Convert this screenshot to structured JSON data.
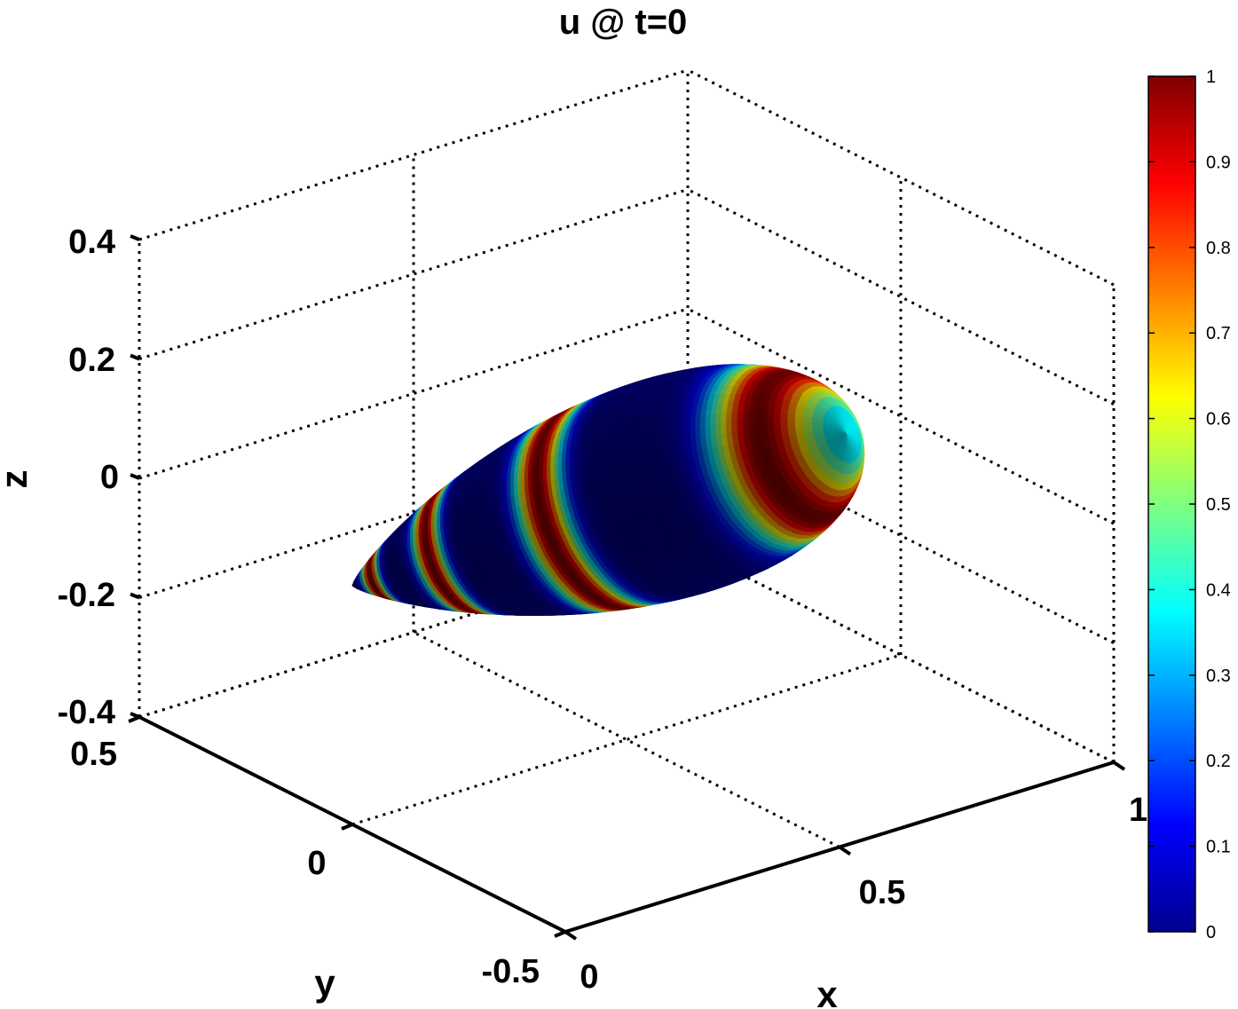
{
  "chart_data": {
    "type": "surface3d",
    "title": "u @ t=0",
    "xlabel": "x",
    "ylabel": "y",
    "zlabel": "z",
    "xlim": [
      0,
      1
    ],
    "ylim": [
      -0.5,
      0.5
    ],
    "zlim": [
      -0.4,
      0.4
    ],
    "xticks": [
      "0",
      "0.5",
      "1"
    ],
    "yticks": [
      "-0.5",
      "0",
      "0.5"
    ],
    "zticks": [
      "-0.4",
      "-0.2",
      "0",
      "0.2",
      "0.4"
    ],
    "grid": true,
    "colormap": "jet",
    "clim": [
      0,
      1
    ],
    "colorbar_ticks": [
      "0",
      "0.1",
      "0.2",
      "0.3",
      "0.4",
      "0.5",
      "0.6",
      "0.7",
      "0.8",
      "0.9",
      "1"
    ],
    "surface": {
      "shape": "teardrop body of revolution about the x axis",
      "x_range": [
        0,
        0.9
      ],
      "max_radius": 0.36,
      "color_bands_u1_at_x": [
        0.06,
        0.21,
        0.46,
        0.83
      ],
      "colors": {
        "low": "#00008f",
        "mid": "#00ffff",
        "high": "#800000"
      }
    }
  }
}
